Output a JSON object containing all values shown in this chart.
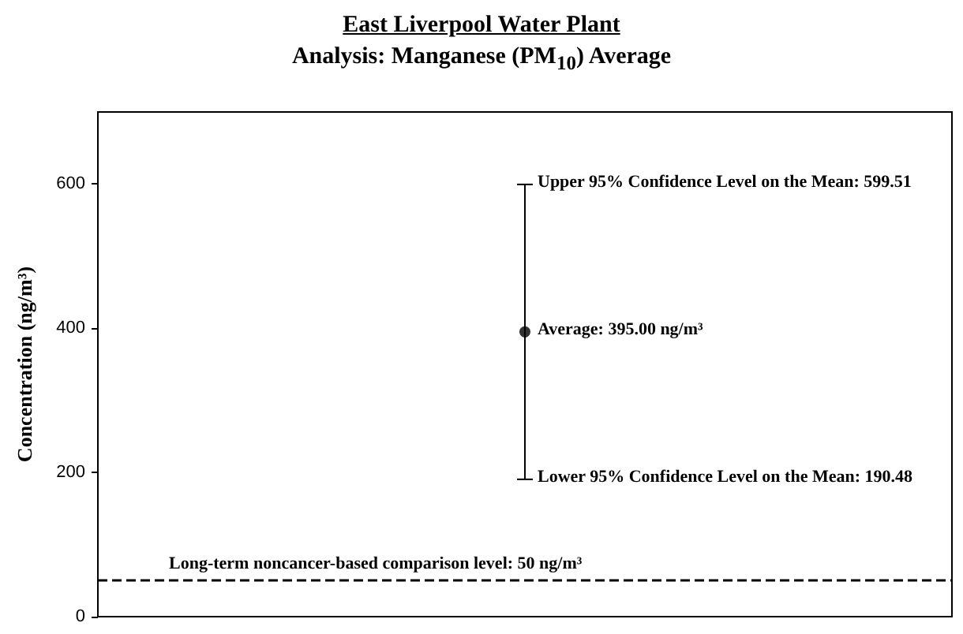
{
  "chart_data": {
    "type": "scatter",
    "title": "East Liverpool Water Plant",
    "subtitle": "Analysis: Manganese (PM$_{10}$) Average",
    "ylabel": "Concentration (ng/m³)",
    "categories": [
      null
    ],
    "series": [
      {
        "color": "#000000",
        "values": [
          395
        ],
        "errors": [
          [
            190.48,
            599.51
          ]
        ]
      }
    ],
    "ylim": [
      0,
      700
    ],
    "yticks": [
      0,
      200,
      400,
      600
    ],
    "grid": false,
    "marker": "circle",
    "ref_lines": [
      {
        "axis": "y",
        "value": 50,
        "label": "Long-term noncancer-based comparison level: 50 ng/m³",
        "color": "#000000",
        "line_style": "dashed"
      }
    ],
    "annotations": [
      "Upper 95% Confidence Level on the Mean: 599.51",
      "Average: 395.00 ng/m³",
      "Lower 95% Confidence Level on the Mean: 190.48"
    ]
  }
}
